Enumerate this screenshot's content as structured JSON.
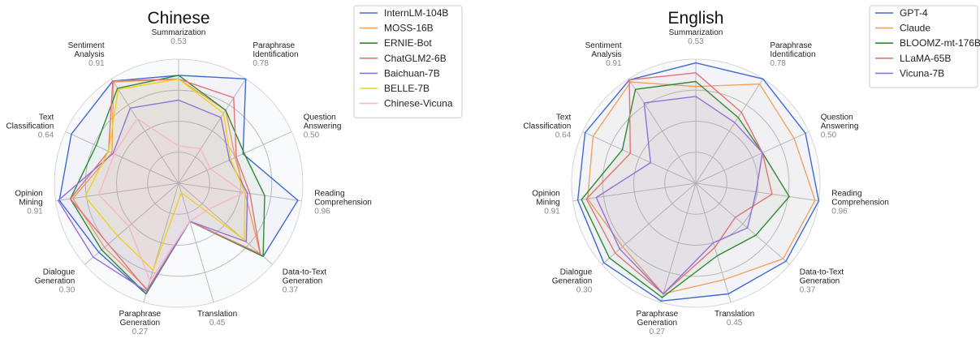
{
  "chart_data": [
    {
      "type": "radar",
      "title": "Chinese",
      "axes": [
        {
          "label": "Summarization",
          "max": "0.53"
        },
        {
          "label": "Paraphrase\nIdentification",
          "max": "0.78"
        },
        {
          "label": "Question\nAnswering",
          "max": "0.50"
        },
        {
          "label": "Reading\nComprehension",
          "max": "0.96"
        },
        {
          "label": "Data-to-Text\nGeneration",
          "max": "0.37"
        },
        {
          "label": "Translation",
          "max": "0.45"
        },
        {
          "label": "Paraphrase\nGeneration",
          "max": "0.27"
        },
        {
          "label": "Dialogue\nGeneration",
          "max": "0.30"
        },
        {
          "label": "Opinion\nMining",
          "max": "0.91"
        },
        {
          "label": "Text\nClassification",
          "max": "0.64"
        },
        {
          "label": "Sentiment\nAnalysis",
          "max": "0.91"
        }
      ],
      "series": [
        {
          "name": "InternLM-104B",
          "color": "#4169d1",
          "values": [
            0.87,
            1.0,
            0.57,
            0.97,
            0.9,
            0.32,
            0.93,
            0.85,
            0.97,
            0.95,
            0.98
          ]
        },
        {
          "name": "MOSS-16B",
          "color": "#f0a460",
          "values": [
            0.84,
            0.7,
            0.5,
            0.54,
            0.87,
            0.32,
            0.89,
            0.79,
            0.86,
            0.59,
            0.97
          ]
        },
        {
          "name": "ERNIE-Bot",
          "color": "#2e8b2e",
          "values": [
            0.87,
            0.7,
            0.58,
            0.7,
            0.9,
            0.32,
            0.93,
            0.82,
            0.88,
            0.73,
            0.91
          ]
        },
        {
          "name": "ChatGLM2-6B",
          "color": "#e57373",
          "values": [
            0.84,
            0.82,
            0.51,
            0.58,
            0.87,
            0.32,
            0.9,
            0.75,
            0.88,
            0.62,
            0.98
          ]
        },
        {
          "name": "Baichuan-7B",
          "color": "#9370db",
          "values": [
            0.67,
            0.63,
            0.45,
            0.56,
            0.72,
            0.32,
            0.91,
            0.91,
            0.98,
            0.58,
            0.72
          ]
        },
        {
          "name": "BELLE-7B",
          "color": "#f2d11e",
          "values": [
            0.84,
            0.67,
            0.46,
            0.54,
            0.7,
            0.08,
            0.73,
            0.65,
            0.76,
            0.62,
            0.9
          ]
        },
        {
          "name": "Chinese-Vicuna",
          "color": "#f7b6c6",
          "values": [
            0.3,
            0.33,
            0.28,
            0.53,
            0.32,
            0.32,
            0.82,
            0.53,
            0.65,
            0.57,
            0.62
          ]
        }
      ]
    },
    {
      "type": "radar",
      "title": "English",
      "axes": [
        {
          "label": "Summarization",
          "max": "0.53"
        },
        {
          "label": "Paraphrase\nIdentification",
          "max": "0.78"
        },
        {
          "label": "Question\nAnswering",
          "max": "0.50"
        },
        {
          "label": "Reading\nComprehension",
          "max": "0.96"
        },
        {
          "label": "Data-to-Text\nGeneration",
          "max": "0.37"
        },
        {
          "label": "Translation",
          "max": "0.45"
        },
        {
          "label": "Paraphrase\nGeneration",
          "max": "0.27"
        },
        {
          "label": "Dialogue\nGeneration",
          "max": "0.30"
        },
        {
          "label": "Opinion\nMining",
          "max": "0.91"
        },
        {
          "label": "Text\nClassification",
          "max": "0.64"
        },
        {
          "label": "Sentiment\nAnalysis",
          "max": "0.91"
        }
      ],
      "series": [
        {
          "name": "GPT-4",
          "color": "#4169d1",
          "values": [
            0.97,
            1.0,
            0.97,
            1.0,
            0.96,
            0.93,
            0.99,
            0.98,
            0.96,
            0.98,
            0.99
          ]
        },
        {
          "name": "Claude",
          "color": "#f0a460",
          "values": [
            0.78,
            0.95,
            0.87,
            0.97,
            0.93,
            0.81,
            0.93,
            0.78,
            0.88,
            0.91,
            0.97
          ]
        },
        {
          "name": "BLOOMZ-mt-176B",
          "color": "#2e8b2e",
          "values": [
            0.82,
            0.63,
            0.59,
            0.76,
            0.64,
            0.61,
            0.96,
            0.92,
            0.93,
            0.65,
            0.9
          ]
        },
        {
          "name": "LLaMA-65B",
          "color": "#e57373",
          "values": [
            0.89,
            0.68,
            0.59,
            0.62,
            0.42,
            0.54,
            0.93,
            0.86,
            0.89,
            0.58,
            0.99
          ]
        },
        {
          "name": "Vicuna-7B",
          "color": "#9370db",
          "values": [
            0.7,
            0.58,
            0.59,
            0.49,
            0.55,
            0.5,
            0.93,
            0.81,
            0.81,
            0.4,
            0.77
          ]
        }
      ]
    }
  ]
}
